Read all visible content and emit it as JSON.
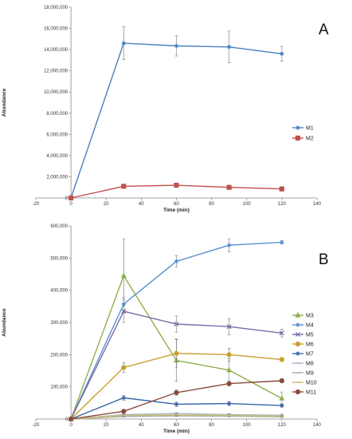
{
  "chart_data": [
    {
      "type": "line",
      "panel_label": "A",
      "xlabel": "Time (min)",
      "ylabel": "Abundance",
      "xlim": [
        -20,
        140
      ],
      "ylim": [
        0,
        18000000
      ],
      "xticks": [
        -20,
        0,
        20,
        40,
        60,
        80,
        100,
        120,
        140
      ],
      "yticks": [
        0,
        2000000,
        4000000,
        6000000,
        8000000,
        10000000,
        12000000,
        14000000,
        16000000,
        18000000
      ],
      "xtick_labels": [
        "-20",
        "0",
        "20",
        "40",
        "60",
        "80",
        "100",
        "120",
        "140"
      ],
      "ytick_labels": [
        "0",
        "2,000,000",
        "4,000,000",
        "6,000,000",
        "8,000,000",
        "10,000,000",
        "12,000,000",
        "14,000,000",
        "16,000,000",
        "18,000,000"
      ],
      "grid": false,
      "legend_position": "right",
      "series": [
        {
          "name": "M1",
          "color": "#4a7fbf",
          "marker": "star",
          "x": [
            0,
            30,
            60,
            90,
            120
          ],
          "y": [
            0,
            14600000,
            14350000,
            14250000,
            13600000
          ],
          "err": [
            0,
            1550000,
            950000,
            1500000,
            700000
          ]
        },
        {
          "name": "M2",
          "color": "#c0504d",
          "marker": "square",
          "x": [
            0,
            30,
            60,
            90,
            120
          ],
          "y": [
            0,
            1100000,
            1200000,
            1000000,
            850000
          ],
          "err": [
            0,
            80000,
            80000,
            120000,
            150000
          ]
        }
      ]
    },
    {
      "type": "line",
      "panel_label": "B",
      "xlabel": "Time (min)",
      "ylabel": "Abundance",
      "xlim": [
        -20,
        140
      ],
      "ylim": [
        0,
        600000
      ],
      "xticks": [
        -20,
        0,
        20,
        40,
        60,
        80,
        100,
        120,
        140
      ],
      "yticks": [
        0,
        100000,
        200000,
        300000,
        400000,
        500000,
        600000
      ],
      "xtick_labels": [
        "-20",
        "0",
        "20",
        "40",
        "60",
        "80",
        "100",
        "120",
        "140"
      ],
      "ytick_labels": [
        "0",
        "100,000",
        "200,000",
        "300,000",
        "400,000",
        "500,000",
        "600,000"
      ],
      "grid": false,
      "legend_position": "right",
      "series": [
        {
          "name": "M3",
          "color": "#8fae4f",
          "marker": "triangle",
          "x": [
            0,
            30,
            60,
            90,
            120
          ],
          "y": [
            0,
            445000,
            182000,
            152000,
            64000
          ],
          "err": [
            0,
            115000,
            65000,
            35000,
            20000
          ]
        },
        {
          "name": "M4",
          "color": "#5b8fd0",
          "marker": "star",
          "x": [
            0,
            30,
            60,
            90,
            120
          ],
          "y": [
            0,
            357000,
            490000,
            540000,
            549000
          ],
          "err": [
            0,
            20000,
            18000,
            20000,
            5000
          ]
        },
        {
          "name": "M5",
          "color": "#7e6aa8",
          "marker": "x",
          "x": [
            0,
            30,
            60,
            90,
            120
          ],
          "y": [
            0,
            335000,
            295000,
            287000,
            267000
          ],
          "err": [
            0,
            35000,
            25000,
            25000,
            12000
          ]
        },
        {
          "name": "M6",
          "color": "#c8a030",
          "marker": "circle",
          "x": [
            0,
            30,
            60,
            90,
            120
          ],
          "y": [
            0,
            160000,
            204000,
            200000,
            185000
          ],
          "err": [
            0,
            15000,
            45000,
            20000,
            6000
          ]
        },
        {
          "name": "M7",
          "color": "#3a64a8",
          "marker": "star",
          "x": [
            0,
            30,
            60,
            90,
            120
          ],
          "y": [
            0,
            66000,
            46000,
            48000,
            42000
          ],
          "err": [
            0,
            8000,
            7000,
            6000,
            5000
          ]
        },
        {
          "name": "M8",
          "color": "#a9b4c4",
          "marker": "dash",
          "x": [
            0,
            30,
            60,
            90,
            120
          ],
          "y": [
            0,
            14000,
            17000,
            14000,
            12000
          ],
          "err": [
            0,
            3000,
            3000,
            3000,
            3000
          ]
        },
        {
          "name": "M9",
          "color": "#a8a8a8",
          "marker": "dash",
          "x": [
            0,
            30,
            60,
            90,
            120
          ],
          "y": [
            0,
            8000,
            10000,
            9000,
            7000
          ],
          "err": [
            0,
            2000,
            2000,
            2000,
            2000
          ]
        },
        {
          "name": "M10",
          "color": "#c9c070",
          "marker": "dash",
          "x": [
            0,
            30,
            60,
            90,
            120
          ],
          "y": [
            0,
            11000,
            13000,
            11000,
            9000
          ],
          "err": [
            0,
            2000,
            2000,
            2000,
            2000
          ]
        },
        {
          "name": "M11",
          "color": "#8b4a3a",
          "marker": "circle",
          "x": [
            0,
            30,
            60,
            90,
            120
          ],
          "y": [
            0,
            24000,
            82000,
            110000,
            119000
          ],
          "err": [
            0,
            4000,
            8000,
            7000,
            6000
          ]
        }
      ]
    }
  ]
}
